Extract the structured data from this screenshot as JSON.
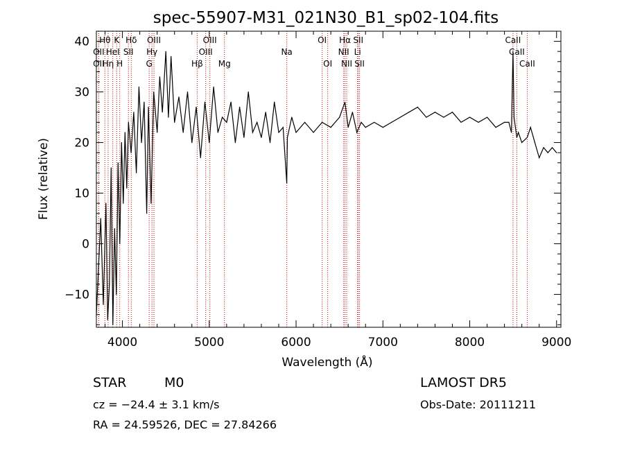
{
  "chart_data": {
    "type": "line",
    "title": "spec-55907-M31_021N30_B1_sp02-104.fits",
    "xlabel": "Wavelength (Å)",
    "ylabel": "Flux (relative)",
    "xlim": [
      3700,
      9050
    ],
    "ylim": [
      -16.5,
      42
    ],
    "x_ticks": [
      4000,
      5000,
      6000,
      7000,
      8000,
      9000
    ],
    "y_ticks": [
      -10,
      0,
      10,
      20,
      30,
      40
    ],
    "grid": false,
    "line_color": "#000000",
    "marker_color": "#cc0000",
    "series": [
      {
        "x": [
          3700,
          3750,
          3780,
          3810,
          3830,
          3850,
          3870,
          3890,
          3910,
          3930,
          3950,
          3970,
          3990,
          4010,
          4030,
          4050,
          4070,
          4100,
          4130,
          4160,
          4190,
          4220,
          4250,
          4280,
          4300,
          4330,
          4360,
          4400,
          4430,
          4460,
          4500,
          4530,
          4560,
          4600,
          4650,
          4700,
          4750,
          4800,
          4850,
          4900,
          4950,
          5000,
          5050,
          5100,
          5150,
          5200,
          5250,
          5300,
          5350,
          5400,
          5450,
          5500,
          5550,
          5600,
          5650,
          5700,
          5750,
          5800,
          5850,
          5893,
          5900,
          5950,
          6000,
          6100,
          6200,
          6300,
          6400,
          6500,
          6563,
          6600,
          6650,
          6700,
          6750,
          6800,
          6900,
          7000,
          7100,
          7200,
          7300,
          7400,
          7500,
          7600,
          7700,
          7800,
          7900,
          8000,
          8100,
          8200,
          8300,
          8400,
          8450,
          8480,
          8498,
          8510,
          8542,
          8560,
          8600,
          8662,
          8700,
          8750,
          8800,
          8850,
          8900,
          8950,
          9000
        ],
        "y": [
          -14,
          5,
          -12,
          8,
          -15,
          -8,
          15,
          -16,
          3,
          -10,
          16,
          0,
          20,
          8,
          22,
          11,
          24,
          18,
          26,
          14,
          31,
          20,
          28,
          6,
          27,
          8,
          30,
          22,
          33,
          26,
          38,
          25,
          37,
          24,
          29,
          22,
          30,
          20,
          27,
          17,
          28,
          20,
          31,
          22,
          25,
          24,
          28,
          20,
          27,
          21,
          30,
          22,
          24,
          21,
          26,
          20,
          28,
          22,
          23,
          12,
          21,
          25,
          22,
          24,
          22,
          24,
          23,
          25,
          28,
          23,
          26,
          22,
          24,
          23,
          24,
          23,
          24,
          25,
          26,
          27,
          25,
          26,
          25,
          26,
          24,
          25,
          24,
          25,
          23,
          24,
          24,
          22,
          38,
          25,
          21,
          22,
          20,
          21,
          23,
          20,
          17,
          19,
          18,
          19,
          18
        ]
      }
    ],
    "lines": [
      {
        "label": "Hθ",
        "x": 3798,
        "row": 1
      },
      {
        "label": "OII",
        "x": 3727,
        "row": 2
      },
      {
        "label": "OII",
        "x": 3727,
        "row": 3
      },
      {
        "label": "Hη",
        "x": 3835,
        "row": 3
      },
      {
        "label": "HeI",
        "x": 3889,
        "row": 2
      },
      {
        "label": "K",
        "x": 3934,
        "row": 1
      },
      {
        "label": "H",
        "x": 3969,
        "row": 3
      },
      {
        "label": "SII",
        "x": 4069,
        "row": 2
      },
      {
        "label": "Hδ",
        "x": 4102,
        "row": 1
      },
      {
        "label": "OIII",
        "x": 4363,
        "row": 1
      },
      {
        "label": "Hγ",
        "x": 4340,
        "row": 2
      },
      {
        "label": "G",
        "x": 4308,
        "row": 3
      },
      {
        "label": "Hβ",
        "x": 4861,
        "row": 3
      },
      {
        "label": "OIII",
        "x": 5007,
        "row": 1
      },
      {
        "label": "OIII",
        "x": 4959,
        "row": 2
      },
      {
        "label": "Mg",
        "x": 5175,
        "row": 3
      },
      {
        "label": "Na",
        "x": 5893,
        "row": 2
      },
      {
        "label": "OI",
        "x": 6300,
        "row": 1
      },
      {
        "label": "OI",
        "x": 6364,
        "row": 3
      },
      {
        "label": "Hα",
        "x": 6563,
        "row": 1
      },
      {
        "label": "NII",
        "x": 6548,
        "row": 2
      },
      {
        "label": "NII",
        "x": 6583,
        "row": 3
      },
      {
        "label": "SII",
        "x": 6716,
        "row": 1
      },
      {
        "label": "Li",
        "x": 6708,
        "row": 2
      },
      {
        "label": "SII",
        "x": 6731,
        "row": 3
      },
      {
        "label": "CaII",
        "x": 8498,
        "row": 1
      },
      {
        "label": "CaII",
        "x": 8542,
        "row": 2
      },
      {
        "label": "CaII",
        "x": 8662,
        "row": 3
      }
    ]
  },
  "footer": {
    "object_class": "STAR",
    "subclass": "M0",
    "redshift": "cz = −24.4 ± 3.1 km/s",
    "coords": "RA =  24.59526, DEC =  27.84266",
    "survey": "LAMOST DR5",
    "obs_date": "Obs-Date: 20111211"
  }
}
